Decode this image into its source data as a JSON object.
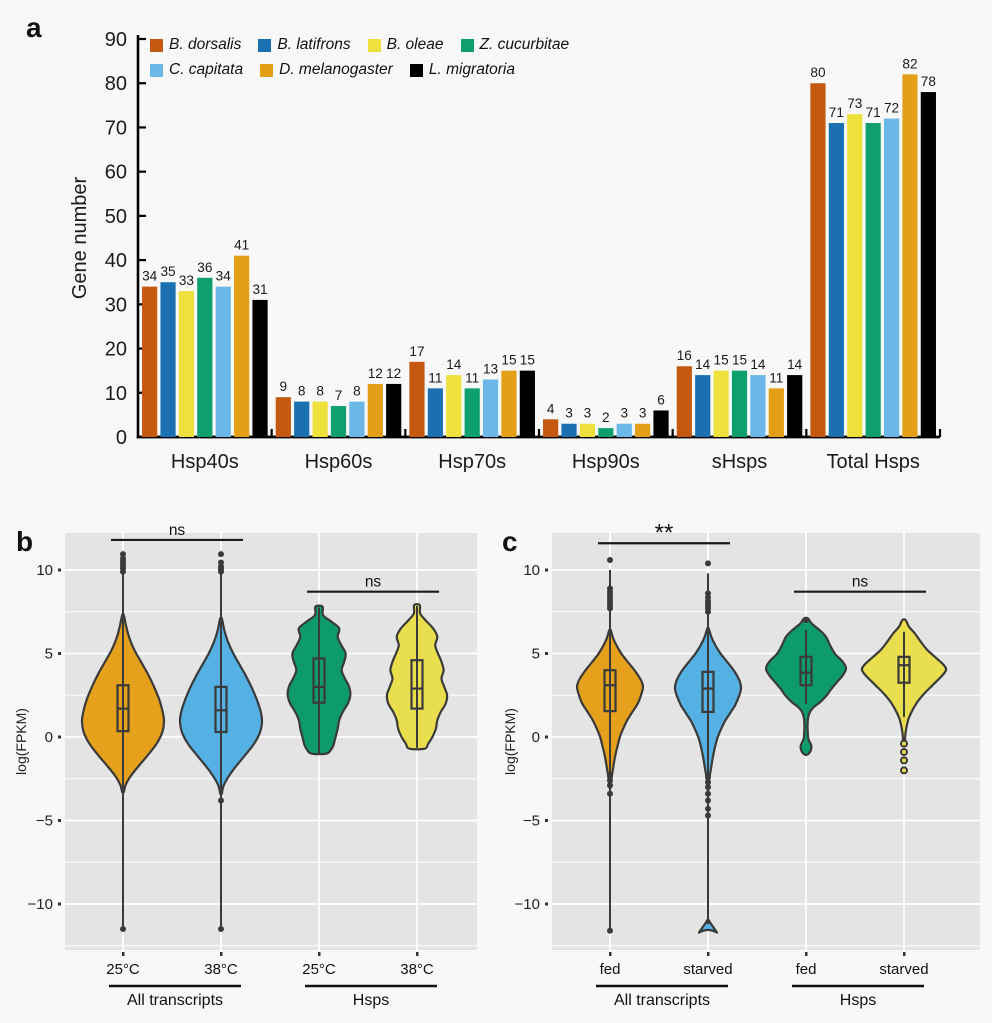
{
  "figure": {
    "background": "#f8f8f8",
    "plot_bg": "#e4e4e4",
    "grid_color": "#ffffff",
    "stroke": "#3a3a3a"
  },
  "chart_data": [
    {
      "type": "bar",
      "panel_label": "a",
      "ylabel": "Gene number",
      "ylim": [
        0,
        90
      ],
      "ytick_step": 10,
      "yticks": [
        0,
        10,
        20,
        30,
        40,
        50,
        60,
        70,
        80,
        90
      ],
      "categories": [
        "Hsp40s",
        "Hsp60s",
        "Hsp70s",
        "Hsp90s",
        "sHsps",
        "Total Hsps"
      ],
      "legend_rows": [
        [
          0,
          1,
          2,
          3
        ],
        [
          4,
          5,
          6
        ]
      ],
      "series": [
        {
          "name": "B. dorsalis",
          "color": "#C5590F",
          "values": [
            34,
            9,
            17,
            4,
            16,
            80
          ]
        },
        {
          "name": "B. latifrons",
          "color": "#1B70B2",
          "values": [
            35,
            8,
            11,
            3,
            14,
            71
          ]
        },
        {
          "name": "B. oleae",
          "color": "#EEE13C",
          "values": [
            33,
            8,
            14,
            3,
            15,
            73
          ]
        },
        {
          "name": "Z. cucurbitae",
          "color": "#0E9F6E",
          "values": [
            36,
            7,
            11,
            2,
            15,
            71
          ]
        },
        {
          "name": "C. capitata",
          "color": "#6BB7E8",
          "values": [
            34,
            8,
            13,
            3,
            14,
            72
          ]
        },
        {
          "name": "D. melanogaster",
          "color": "#E39F16",
          "values": [
            41,
            12,
            15,
            3,
            11,
            82
          ]
        },
        {
          "name": "L. migratoria",
          "color": "#000000",
          "values": [
            31,
            12,
            15,
            6,
            14,
            78
          ]
        }
      ]
    },
    {
      "type": "violin",
      "panel_label": "b",
      "ylabel": "log(FPKM)",
      "yticks": [
        10,
        5,
        0,
        -5,
        -10
      ],
      "grid_minor": [
        7.5,
        2.5,
        -2.5,
        -7.5,
        -12.5
      ],
      "groups": [
        {
          "label": "All transcripts",
          "members": [
            0,
            1
          ]
        },
        {
          "label": "Hsps",
          "members": [
            2,
            3
          ]
        }
      ],
      "annotations": [
        {
          "text": "ns",
          "from": 0,
          "to": 1,
          "at": 11.8
        },
        {
          "text": "ns",
          "from": 2,
          "to": 3,
          "at": 8.7
        }
      ],
      "violins": [
        {
          "tick": "25°C",
          "fill": "#E5A11B",
          "max_halfwidth": 41,
          "profile": [
            [
              7.3,
              0.02
            ],
            [
              6.6,
              0.08
            ],
            [
              5.9,
              0.16
            ],
            [
              5.2,
              0.28
            ],
            [
              4.5,
              0.44
            ],
            [
              3.8,
              0.6
            ],
            [
              3.1,
              0.74
            ],
            [
              2.4,
              0.86
            ],
            [
              1.7,
              0.95
            ],
            [
              1.0,
              1.0
            ],
            [
              0.3,
              0.96
            ],
            [
              -0.4,
              0.82
            ],
            [
              -1.1,
              0.6
            ],
            [
              -1.8,
              0.36
            ],
            [
              -2.4,
              0.17
            ],
            [
              -2.9,
              0.06
            ],
            [
              -3.3,
              0.02
            ]
          ],
          "box": {
            "q1": 0.35,
            "q3": 3.1,
            "median": 1.7
          },
          "stem": [
            -11.5,
            9.8
          ],
          "dots": [
            9.9,
            10.1,
            10.25,
            10.4,
            10.55,
            10.7,
            10.95,
            -11.5
          ],
          "ring_dots": [],
          "blob": null
        },
        {
          "tick": "38°C",
          "fill": "#55B1E4",
          "max_halfwidth": 41,
          "profile": [
            [
              7.1,
              0.02
            ],
            [
              6.4,
              0.08
            ],
            [
              5.7,
              0.17
            ],
            [
              5.0,
              0.3
            ],
            [
              4.3,
              0.46
            ],
            [
              3.6,
              0.62
            ],
            [
              2.9,
              0.76
            ],
            [
              2.2,
              0.88
            ],
            [
              1.5,
              0.97
            ],
            [
              0.9,
              1.0
            ],
            [
              0.2,
              0.94
            ],
            [
              -0.5,
              0.78
            ],
            [
              -1.2,
              0.55
            ],
            [
              -1.9,
              0.32
            ],
            [
              -2.5,
              0.15
            ],
            [
              -3.0,
              0.05
            ],
            [
              -3.4,
              0.02
            ]
          ],
          "box": {
            "q1": 0.3,
            "q3": 3.0,
            "median": 1.6
          },
          "stem": [
            -11.5,
            9.8
          ],
          "dots": [
            9.9,
            10.05,
            10.2,
            10.45,
            10.95,
            -3.8,
            -11.5
          ],
          "ring_dots": [],
          "blob": null
        },
        {
          "tick": "25°C",
          "fill": "#0D9B6B",
          "max_halfwidth": 36,
          "profile": [
            [
              7.8,
              0.1
            ],
            [
              7.3,
              0.11
            ],
            [
              6.9,
              0.35
            ],
            [
              6.5,
              0.56
            ],
            [
              6.0,
              0.52
            ],
            [
              5.5,
              0.62
            ],
            [
              5.0,
              0.74
            ],
            [
              4.5,
              0.7
            ],
            [
              4.0,
              0.63
            ],
            [
              3.5,
              0.72
            ],
            [
              3.0,
              0.84
            ],
            [
              2.5,
              0.87
            ],
            [
              2.0,
              0.8
            ],
            [
              1.5,
              0.66
            ],
            [
              1.0,
              0.56
            ],
            [
              0.5,
              0.52
            ],
            [
              0.0,
              0.46
            ],
            [
              -0.5,
              0.4
            ],
            [
              -0.8,
              0.32
            ],
            [
              -1.0,
              0.2
            ]
          ],
          "box": {
            "q1": 2.05,
            "q3": 4.7,
            "median": 3.0
          },
          "stem": [
            -1.0,
            7.75
          ],
          "dots": [],
          "ring_dots": [],
          "blob": null
        },
        {
          "tick": "38°C",
          "fill": "#E9DF4E",
          "max_halfwidth": 35,
          "profile": [
            [
              7.9,
              0.08
            ],
            [
              7.4,
              0.09
            ],
            [
              7.0,
              0.24
            ],
            [
              6.5,
              0.46
            ],
            [
              6.0,
              0.58
            ],
            [
              5.5,
              0.52
            ],
            [
              5.0,
              0.6
            ],
            [
              4.5,
              0.7
            ],
            [
              4.0,
              0.76
            ],
            [
              3.5,
              0.7
            ],
            [
              3.0,
              0.78
            ],
            [
              2.5,
              0.86
            ],
            [
              2.0,
              0.82
            ],
            [
              1.5,
              0.68
            ],
            [
              1.0,
              0.58
            ],
            [
              0.5,
              0.54
            ],
            [
              0.0,
              0.44
            ],
            [
              -0.4,
              0.32
            ],
            [
              -0.7,
              0.22
            ]
          ],
          "box": {
            "q1": 1.7,
            "q3": 4.6,
            "median": 2.9
          },
          "stem": [
            -0.65,
            7.85
          ],
          "dots": [],
          "ring_dots": [],
          "blob": null
        }
      ]
    },
    {
      "type": "violin",
      "panel_label": "c",
      "ylabel": "log(FPKM)",
      "yticks": [
        10,
        5,
        0,
        -5,
        -10
      ],
      "grid_minor": [
        7.5,
        2.5,
        -2.5,
        -7.5,
        -12.5
      ],
      "groups": [
        {
          "label": "All transcripts",
          "members": [
            0,
            1
          ]
        },
        {
          "label": "Hsps",
          "members": [
            2,
            3
          ]
        }
      ],
      "annotations": [
        {
          "text": "**",
          "from": 0,
          "to": 1,
          "at": 11.6
        },
        {
          "text": "ns",
          "from": 2,
          "to": 3,
          "at": 8.7
        }
      ],
      "violins": [
        {
          "tick": "fed",
          "fill": "#E5A11B",
          "max_halfwidth": 33,
          "profile": [
            [
              6.4,
              0.02
            ],
            [
              5.9,
              0.1
            ],
            [
              5.4,
              0.22
            ],
            [
              4.9,
              0.38
            ],
            [
              4.4,
              0.58
            ],
            [
              3.9,
              0.78
            ],
            [
              3.4,
              0.94
            ],
            [
              3.0,
              1.0
            ],
            [
              2.5,
              0.94
            ],
            [
              2.0,
              0.84
            ],
            [
              1.5,
              0.68
            ],
            [
              1.0,
              0.52
            ],
            [
              0.5,
              0.4
            ],
            [
              0.0,
              0.3
            ],
            [
              -0.6,
              0.22
            ],
            [
              -1.2,
              0.15
            ],
            [
              -1.8,
              0.1
            ],
            [
              -2.4,
              0.05
            ],
            [
              -3.0,
              0.02
            ]
          ],
          "box": {
            "q1": 1.55,
            "q3": 4.0,
            "median": 3.1
          },
          "stem": [
            -11.6,
            10.0
          ],
          "dots": [
            7.7,
            7.9,
            8.05,
            8.2,
            8.35,
            8.5,
            8.7,
            8.9,
            10.6,
            -2.3,
            -2.6,
            -2.9,
            -3.4,
            -11.6
          ],
          "ring_dots": [],
          "blob": null
        },
        {
          "tick": "starved",
          "fill": "#55B1E4",
          "max_halfwidth": 33,
          "profile": [
            [
              6.5,
              0.02
            ],
            [
              6.0,
              0.1
            ],
            [
              5.5,
              0.22
            ],
            [
              5.0,
              0.38
            ],
            [
              4.5,
              0.58
            ],
            [
              4.0,
              0.78
            ],
            [
              3.4,
              0.95
            ],
            [
              2.9,
              1.0
            ],
            [
              2.4,
              0.93
            ],
            [
              1.9,
              0.82
            ],
            [
              1.4,
              0.66
            ],
            [
              0.9,
              0.5
            ],
            [
              0.4,
              0.38
            ],
            [
              -0.1,
              0.28
            ],
            [
              -0.7,
              0.2
            ],
            [
              -1.3,
              0.14
            ],
            [
              -1.9,
              0.09
            ],
            [
              -2.5,
              0.04
            ],
            [
              -3.1,
              0.02
            ]
          ],
          "box": {
            "q1": 1.5,
            "q3": 3.9,
            "median": 2.9
          },
          "stem": [
            -11.3,
            9.8
          ],
          "dots": [
            7.5,
            7.7,
            7.85,
            8.0,
            8.15,
            8.35,
            8.6,
            10.4,
            -2.4,
            -2.7,
            -3.0,
            -3.4,
            -3.8,
            -4.3,
            -4.7
          ],
          "ring_dots": [],
          "blob": {
            "at": -11.35,
            "shape": "arrow"
          }
        },
        {
          "tick": "fed",
          "fill": "#0D9B6B",
          "max_halfwidth": 40,
          "profile": [
            [
              7.1,
              0.05
            ],
            [
              6.8,
              0.14
            ],
            [
              6.4,
              0.34
            ],
            [
              6.0,
              0.5
            ],
            [
              5.5,
              0.6
            ],
            [
              5.0,
              0.72
            ],
            [
              4.5,
              0.92
            ],
            [
              4.1,
              1.0
            ],
            [
              3.7,
              0.92
            ],
            [
              3.3,
              0.78
            ],
            [
              2.9,
              0.64
            ],
            [
              2.5,
              0.52
            ],
            [
              2.1,
              0.36
            ],
            [
              1.8,
              0.2
            ],
            [
              1.5,
              0.1
            ],
            [
              1.1,
              0.05
            ],
            [
              0.5,
              0.04
            ],
            [
              -0.1,
              0.06
            ],
            [
              -0.5,
              0.13
            ],
            [
              -0.8,
              0.12
            ],
            [
              -1.05,
              0.04
            ]
          ],
          "box": {
            "q1": 3.1,
            "q3": 4.8,
            "median": 3.85
          },
          "stem": [
            2.0,
            6.4
          ],
          "dots": [
            7.0
          ],
          "ring_dots": [],
          "blob": null
        },
        {
          "tick": "starved",
          "fill": "#E9DF4E",
          "max_halfwidth": 42,
          "profile": [
            [
              7.0,
              0.04
            ],
            [
              6.6,
              0.12
            ],
            [
              6.2,
              0.26
            ],
            [
              5.7,
              0.4
            ],
            [
              5.2,
              0.56
            ],
            [
              4.7,
              0.78
            ],
            [
              4.3,
              0.95
            ],
            [
              4.0,
              1.0
            ],
            [
              3.6,
              0.88
            ],
            [
              3.1,
              0.68
            ],
            [
              2.6,
              0.48
            ],
            [
              2.1,
              0.32
            ],
            [
              1.6,
              0.2
            ],
            [
              1.1,
              0.11
            ],
            [
              0.6,
              0.06
            ],
            [
              0.1,
              0.03
            ],
            [
              -0.5,
              0.02
            ]
          ],
          "box": {
            "q1": 3.25,
            "q3": 4.8,
            "median": 4.3
          },
          "stem": [
            1.2,
            6.3
          ],
          "dots": [],
          "ring_dots": [
            -0.4,
            -0.9,
            -1.4,
            -2.0
          ],
          "blob": null
        }
      ]
    }
  ]
}
